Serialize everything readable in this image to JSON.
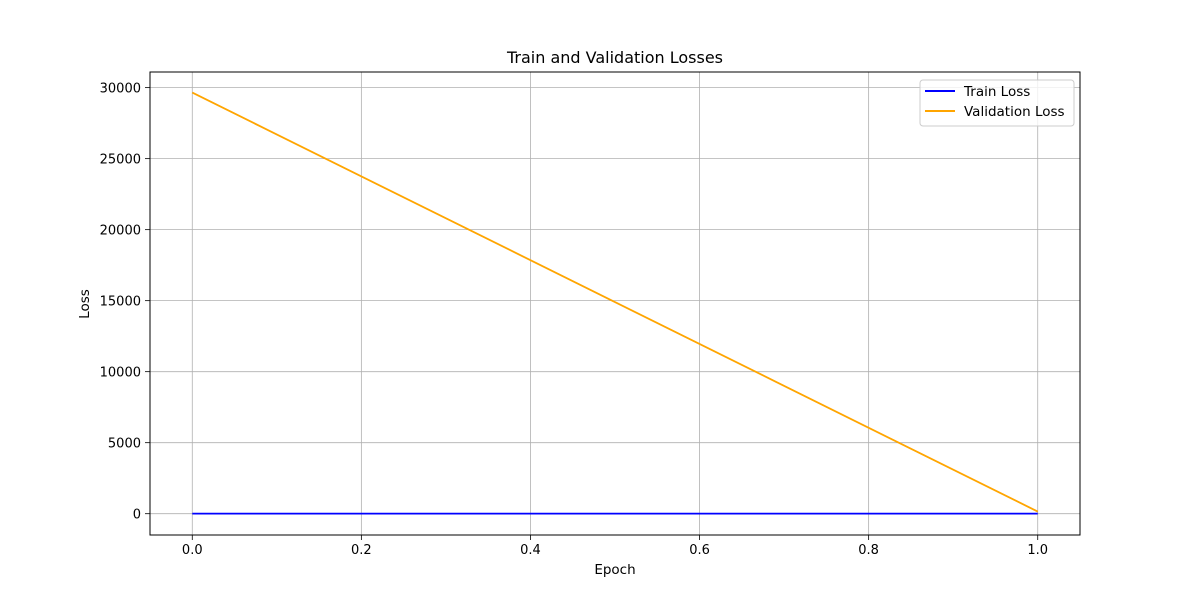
{
  "chart_data": {
    "type": "line",
    "title": "Train and Validation Losses",
    "xlabel": "Epoch",
    "ylabel": "Loss",
    "x": [
      0,
      1
    ],
    "xlim": [
      -0.05,
      1.05
    ],
    "ylim": [
      -1500,
      31100
    ],
    "xticks": [
      0.0,
      0.2,
      0.4,
      0.6,
      0.8,
      1.0
    ],
    "xtick_labels": [
      "0.0",
      "0.2",
      "0.4",
      "0.6",
      "0.8",
      "1.0"
    ],
    "yticks": [
      0,
      5000,
      10000,
      15000,
      20000,
      25000,
      30000
    ],
    "ytick_labels": [
      "0",
      "5000",
      "10000",
      "15000",
      "20000",
      "25000",
      "30000"
    ],
    "grid": true,
    "legend_position": "top-right",
    "series": [
      {
        "name": "Train Loss",
        "color": "#0000ff",
        "values": [
          5,
          5
        ]
      },
      {
        "name": "Validation Loss",
        "color": "#ffa500",
        "values": [
          29650,
          150
        ]
      }
    ]
  }
}
